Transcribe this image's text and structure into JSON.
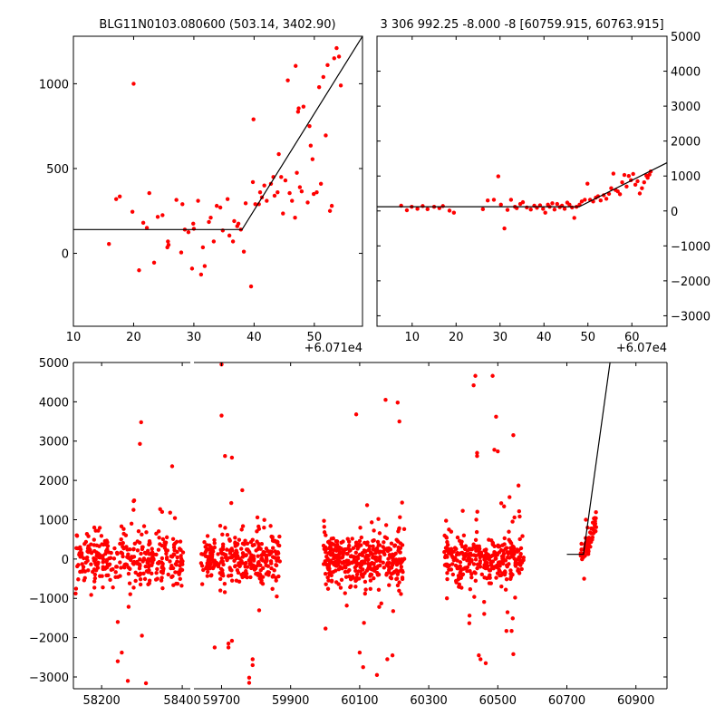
{
  "colors": {
    "points": "#ff0000",
    "model": "#000000",
    "axes": "#000000"
  },
  "chart_data": [
    {
      "type": "scatter",
      "panel": "top-left",
      "title": "BLG11N0103.080600 (503.14, 3402.90)",
      "x_offset_label": "+6.071e4",
      "xlim": [
        10,
        58
      ],
      "ylim": [
        -430,
        1280
      ],
      "xticks": [
        10,
        20,
        30,
        40,
        50
      ],
      "yticks": [
        0,
        500,
        1000
      ],
      "x_tick_labels": [
        "10",
        "20",
        "30",
        "40",
        "50"
      ],
      "y_tick_labels": [
        "0",
        "500",
        "1000"
      ],
      "series": [
        {
          "kind": "points",
          "x": [
            15.9,
            17.1,
            17.7,
            19.8,
            20.0,
            20.9,
            21.6,
            22.2,
            22.6,
            23.4,
            24.0,
            24.8,
            25.6,
            25.7,
            25.8,
            27.1,
            27.9,
            28.1,
            28.5,
            29.1,
            29.7,
            29.9,
            30.0,
            30.7,
            31.2,
            31.5,
            31.8,
            32.5,
            32.8,
            33.3,
            33.8,
            34.4,
            34.8,
            35.6,
            35.9,
            36.5,
            36.7,
            37.2,
            37.4,
            37.8,
            38.3,
            38.6,
            39.5,
            39.8,
            39.9,
            40.2,
            40.8,
            41.0,
            41.3,
            41.7,
            42.1,
            42.8,
            43.2,
            43.4,
            43.9,
            44.1,
            44.5,
            44.8,
            45.2,
            45.6,
            45.9,
            46.3,
            46.8,
            46.9,
            47.1,
            47.3,
            47.4,
            47.6,
            47.9,
            48.2,
            48.9,
            49.2,
            49.4,
            49.7,
            49.9,
            50.4,
            50.8,
            51.1,
            51.5,
            51.9,
            52.2,
            52.6,
            52.9,
            53.3,
            53.7,
            54.1,
            54.4
          ],
          "y": [
            55,
            320,
            335,
            245,
            1000,
            -100,
            180,
            150,
            355,
            -55,
            215,
            225,
            35,
            70,
            50,
            315,
            5,
            290,
            140,
            125,
            -90,
            175,
            145,
            310,
            -125,
            35,
            -75,
            185,
            210,
            70,
            280,
            270,
            135,
            320,
            105,
            70,
            190,
            160,
            175,
            140,
            10,
            295,
            -195,
            420,
            790,
            290,
            290,
            360,
            330,
            400,
            310,
            410,
            450,
            340,
            360,
            585,
            450,
            235,
            430,
            1020,
            355,
            310,
            210,
            1105,
            475,
            835,
            855,
            390,
            365,
            865,
            300,
            750,
            635,
            555,
            350,
            360,
            980,
            410,
            1040,
            695,
            1110,
            250,
            280,
            1150,
            1210,
            1160,
            990
          ]
        },
        {
          "kind": "line",
          "x": [
            10,
            38,
            58
          ],
          "y": [
            140,
            140,
            1280
          ]
        }
      ]
    },
    {
      "type": "scatter",
      "panel": "top-right",
      "title": "3 306 992.25 -8.000 -8 [60759.915, 60763.915]",
      "x_offset_label": "+6.07e4",
      "xlim": [
        2,
        68
      ],
      "ylim": [
        -3300,
        5000
      ],
      "xticks": [
        10,
        20,
        30,
        40,
        50,
        60
      ],
      "yticks": [
        -3000,
        -2000,
        -1000,
        0,
        1000,
        2000,
        3000,
        4000,
        5000
      ],
      "x_tick_labels": [
        "10",
        "20",
        "30",
        "40",
        "50",
        "60"
      ],
      "y_tick_labels": [
        "−3000",
        "−2000",
        "−1000",
        "0",
        "1000",
        "2000",
        "3000",
        "4000",
        "5000"
      ],
      "series": [
        {
          "kind": "points",
          "x": [
            7.5,
            8.8,
            9.9,
            11.2,
            12.4,
            13.5,
            15.0,
            16.2,
            17.0,
            18.5,
            19.5,
            26.1,
            27.2,
            28.6,
            29.6,
            30.2,
            31.0,
            31.7,
            32.5,
            33.4,
            33.8,
            34.6,
            35.2,
            36.1,
            37.0,
            37.8,
            38.4,
            39.1,
            39.8,
            40.3,
            40.9,
            41.3,
            41.9,
            42.4,
            43.0,
            43.6,
            44.1,
            44.7,
            45.3,
            45.8,
            46.4,
            46.9,
            47.4,
            48.1,
            48.6,
            49.3,
            49.9,
            50.5,
            51.2,
            51.8,
            52.3,
            52.9,
            53.6,
            54.2,
            54.8,
            55.3,
            55.8,
            56.3,
            56.8,
            57.3,
            57.8,
            58.3,
            58.8,
            59.3,
            59.8,
            60.3,
            60.8,
            61.3,
            61.8,
            62.3,
            62.8,
            63.3,
            63.6,
            64.0,
            64.3
          ],
          "y": [
            150,
            20,
            120,
            60,
            140,
            50,
            120,
            80,
            140,
            10,
            -50,
            50,
            300,
            320,
            990,
            180,
            -500,
            30,
            320,
            120,
            80,
            200,
            250,
            100,
            40,
            150,
            90,
            160,
            60,
            -50,
            180,
            120,
            220,
            40,
            200,
            110,
            150,
            60,
            240,
            180,
            100,
            -200,
            120,
            180,
            270,
            320,
            780,
            320,
            270,
            380,
            420,
            300,
            450,
            350,
            490,
            650,
            1070,
            600,
            560,
            480,
            820,
            1030,
            700,
            1000,
            880,
            1060,
            750,
            850,
            500,
            650,
            820,
            1010,
            950,
            1040,
            1130
          ]
        },
        {
          "kind": "line",
          "x": [
            2,
            48,
            68
          ],
          "y": [
            120,
            120,
            1380
          ]
        }
      ]
    },
    {
      "type": "scatter",
      "panel": "bottom",
      "broken_x_axis": true,
      "xlim": [
        58100,
        60990
      ],
      "ylim": [
        -3300,
        5000
      ],
      "xticks": [
        58200,
        58400,
        59700,
        59900,
        60100,
        60300,
        60500,
        60700,
        60900
      ],
      "yticks": [
        -3000,
        -2000,
        -1000,
        0,
        1000,
        2000,
        3000,
        4000,
        5000
      ],
      "x_tick_labels": [
        "58200",
        "58400",
        "59700",
        "59900",
        "60100",
        "60300",
        "60500",
        "60700",
        "60900"
      ],
      "y_tick_labels": [
        "−3000",
        "−2000",
        "−1000",
        "0",
        "1000",
        "2000",
        "3000",
        "4000",
        "5000"
      ],
      "segments": [
        {
          "xlim": [
            58130,
            58420
          ]
        },
        {
          "xlim": [
            59620,
            60990
          ]
        }
      ],
      "point_clusters": [
        {
          "x_range": [
            58135,
            58405
          ],
          "count": 330,
          "core_sd": 300,
          "outliers": [
            [
              58298,
              3480
            ],
            [
              58295,
              2930
            ],
            [
              58375,
              2360
            ],
            [
              58265,
              -3100
            ],
            [
              58310,
              -3160
            ],
            [
              58240,
              -2600
            ],
            [
              58250,
              -2380
            ],
            [
              58240,
              -1600
            ],
            [
              58350,
              1200
            ],
            [
              58370,
              1180
            ],
            [
              58300,
              -1950
            ]
          ]
        },
        {
          "x_range": [
            59640,
            59870
          ],
          "count": 300,
          "core_sd": 300,
          "outliers": [
            [
              59700,
              4950
            ],
            [
              59700,
              3650
            ],
            [
              59710,
              2620
            ],
            [
              59730,
              2580
            ],
            [
              59760,
              1750
            ],
            [
              59780,
              -3020
            ],
            [
              59780,
              -3150
            ],
            [
              59730,
              -2080
            ],
            [
              59720,
              -2150
            ],
            [
              59720,
              -2250
            ],
            [
              59680,
              -2250
            ],
            [
              59790,
              -2700
            ],
            [
              59790,
              -2550
            ]
          ]
        },
        {
          "x_range": [
            59995,
            60230
          ],
          "count": 380,
          "core_sd": 320,
          "outliers": [
            [
              60090,
              3680
            ],
            [
              60175,
              4050
            ],
            [
              60210,
              3980
            ],
            [
              60215,
              3500
            ],
            [
              60150,
              -2950
            ],
            [
              60195,
              -2450
            ],
            [
              60110,
              -2750
            ],
            [
              60100,
              -2380
            ],
            [
              60180,
              -2550
            ]
          ]
        },
        {
          "x_range": [
            60345,
            60575
          ],
          "count": 320,
          "core_sd": 300,
          "outliers": [
            [
              60435,
              4660
            ],
            [
              60485,
              4660
            ],
            [
              60430,
              4420
            ],
            [
              60495,
              3620
            ],
            [
              60440,
              2700
            ],
            [
              60440,
              2620
            ],
            [
              60490,
              2780
            ],
            [
              60500,
              2740
            ],
            [
              60510,
              1420
            ],
            [
              60545,
              3150
            ],
            [
              60560,
              1870
            ],
            [
              60445,
              -2450
            ],
            [
              60450,
              -2550
            ],
            [
              60465,
              -2650
            ],
            [
              60545,
              -2420
            ],
            [
              60525,
              -1830
            ],
            [
              60540,
              -1830
            ]
          ]
        },
        {
          "x_range": [
            60740,
            60785
          ],
          "count": 60,
          "core_sd": 150,
          "trend": true,
          "outliers": [
            [
              60755,
              1000
            ],
            [
              60760,
              800
            ],
            [
              60750,
              -500
            ]
          ]
        }
      ],
      "model_line": {
        "x": [
          60700,
          60748,
          60825
        ],
        "y": [
          120,
          120,
          5000
        ]
      }
    }
  ]
}
